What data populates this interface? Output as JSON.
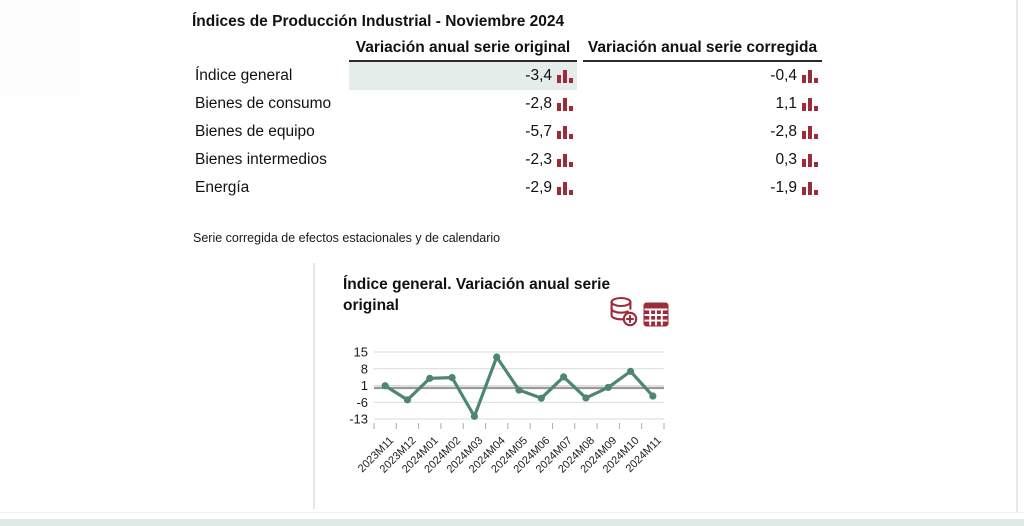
{
  "colors": {
    "accent_red": "#9e2b3a",
    "line_teal": "#4e8673",
    "highlight_cell": "#e4ede9",
    "panel_border": "#dfe9e5",
    "zero_line": "#999999",
    "gridline": "#d9d9d9",
    "tick": "#aaaaaa",
    "header_rule": "#2a2a2a"
  },
  "table": {
    "title": "Índices de Producción Industrial - Noviembre 2024",
    "columns": [
      "Variación anual serie original",
      "Variación anual serie corregida"
    ],
    "rows": [
      {
        "label": "Índice general",
        "original": "-3,4",
        "corregida": "-0,4"
      },
      {
        "label": "Bienes de consumo",
        "original": "-2,8",
        "corregida": "1,1"
      },
      {
        "label": "Bienes de equipo",
        "original": "-5,7",
        "corregida": "-2,8"
      },
      {
        "label": "Bienes intermedios",
        "original": "-2,3",
        "corregida": "0,3"
      },
      {
        "label": "Energía",
        "original": "-2,9",
        "corregida": "-1,9"
      }
    ],
    "footnote": "Serie corregida de efectos estacionales y de calendario",
    "value_icon": "mini-bar-chart-icon"
  },
  "chart": {
    "title": "Índice general. Variación anual serie original",
    "icons": [
      "database-add-icon",
      "data-table-icon"
    ]
  },
  "chart_data": [
    {
      "type": "table",
      "title": "Índices de Producción Industrial - Noviembre 2024",
      "columns": [
        "",
        "Variación anual serie original",
        "Variación anual serie corregida"
      ],
      "rows": [
        [
          "Índice general",
          -3.4,
          -0.4
        ],
        [
          "Bienes de consumo",
          -2.8,
          1.1
        ],
        [
          "Bienes de equipo",
          -5.7,
          -2.8
        ],
        [
          "Bienes intermedios",
          -2.3,
          0.3
        ],
        [
          "Energía",
          -2.9,
          -1.9
        ]
      ]
    },
    {
      "type": "line",
      "title": "Índice general. Variación anual serie original",
      "categories": [
        "2023M11",
        "2023M12",
        "2024M01",
        "2024M02",
        "2024M03",
        "2024M04",
        "2024M05",
        "2024M06",
        "2024M07",
        "2024M08",
        "2024M09",
        "2024M10",
        "2024M11"
      ],
      "values": [
        0.9,
        -5.0,
        4.0,
        4.3,
        -11.9,
        12.9,
        -0.9,
        -4.3,
        4.6,
        -4.2,
        0.2,
        6.9,
        -3.4
      ],
      "yticks": [
        15,
        8,
        1,
        -6,
        -13
      ],
      "ylim": [
        -14.5,
        16.5
      ],
      "xlabel": "",
      "ylabel": "",
      "grid": true,
      "zero_line": true,
      "legend": "none",
      "line_color": "#4e8673",
      "marker": "circle"
    }
  ]
}
